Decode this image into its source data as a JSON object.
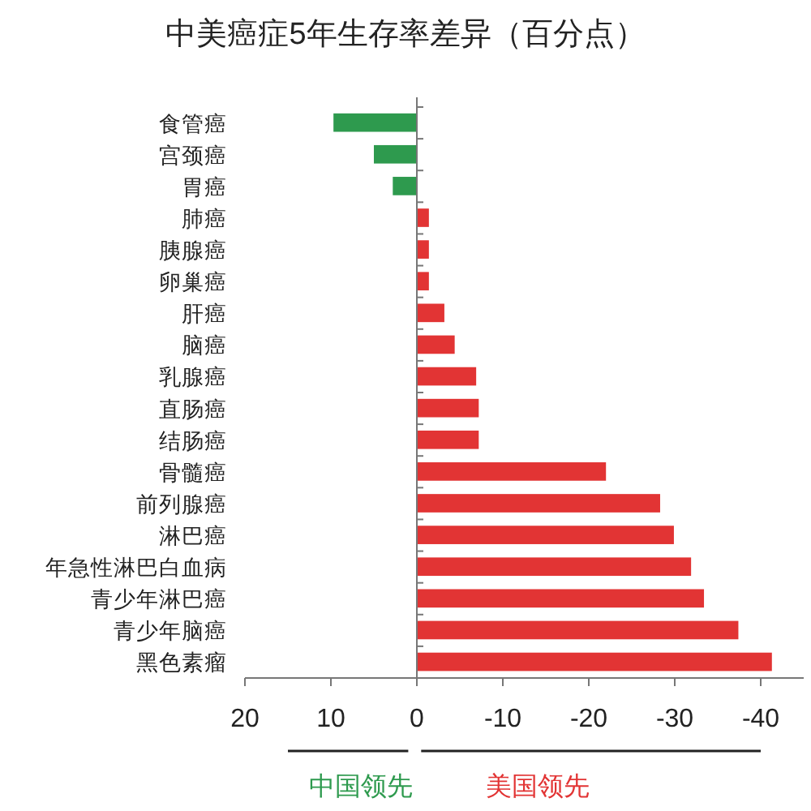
{
  "chart_data": {
    "type": "bar",
    "orientation": "horizontal",
    "title": "中美癌症5年生存率差异（百分点）",
    "categories": [
      "食管癌",
      "宫颈癌",
      "胃癌",
      "肺癌",
      "胰腺癌",
      "卵巢癌",
      "肝癌",
      "脑癌",
      "乳腺癌",
      "直肠癌",
      "结肠癌",
      "骨髓癌",
      "前列腺癌",
      "淋巴癌",
      "年急性淋巴白血病",
      "青少年淋巴癌",
      "青少年脑癌",
      "黑色素瘤"
    ],
    "values": [
      9.7,
      5,
      2.8,
      -1.4,
      -1.4,
      -1.4,
      -3.2,
      -4.4,
      -6.9,
      -7.2,
      -7.2,
      -22,
      -28.3,
      -29.9,
      -31.9,
      -33.4,
      -37.4,
      -41.3
    ],
    "colors": [
      "#2e9a4e",
      "#2e9a4e",
      "#2e9a4e",
      "#e23434",
      "#e23434",
      "#e23434",
      "#e23434",
      "#e23434",
      "#e23434",
      "#e23434",
      "#e23434",
      "#e23434",
      "#e23434",
      "#e23434",
      "#e23434",
      "#e23434",
      "#e23434",
      "#e23434"
    ],
    "xlim": [
      20,
      -45
    ],
    "xticks": [
      20,
      10,
      0,
      -10,
      -20,
      -30,
      -40
    ],
    "annotations": [
      "中国领先",
      "美国领先"
    ]
  }
}
